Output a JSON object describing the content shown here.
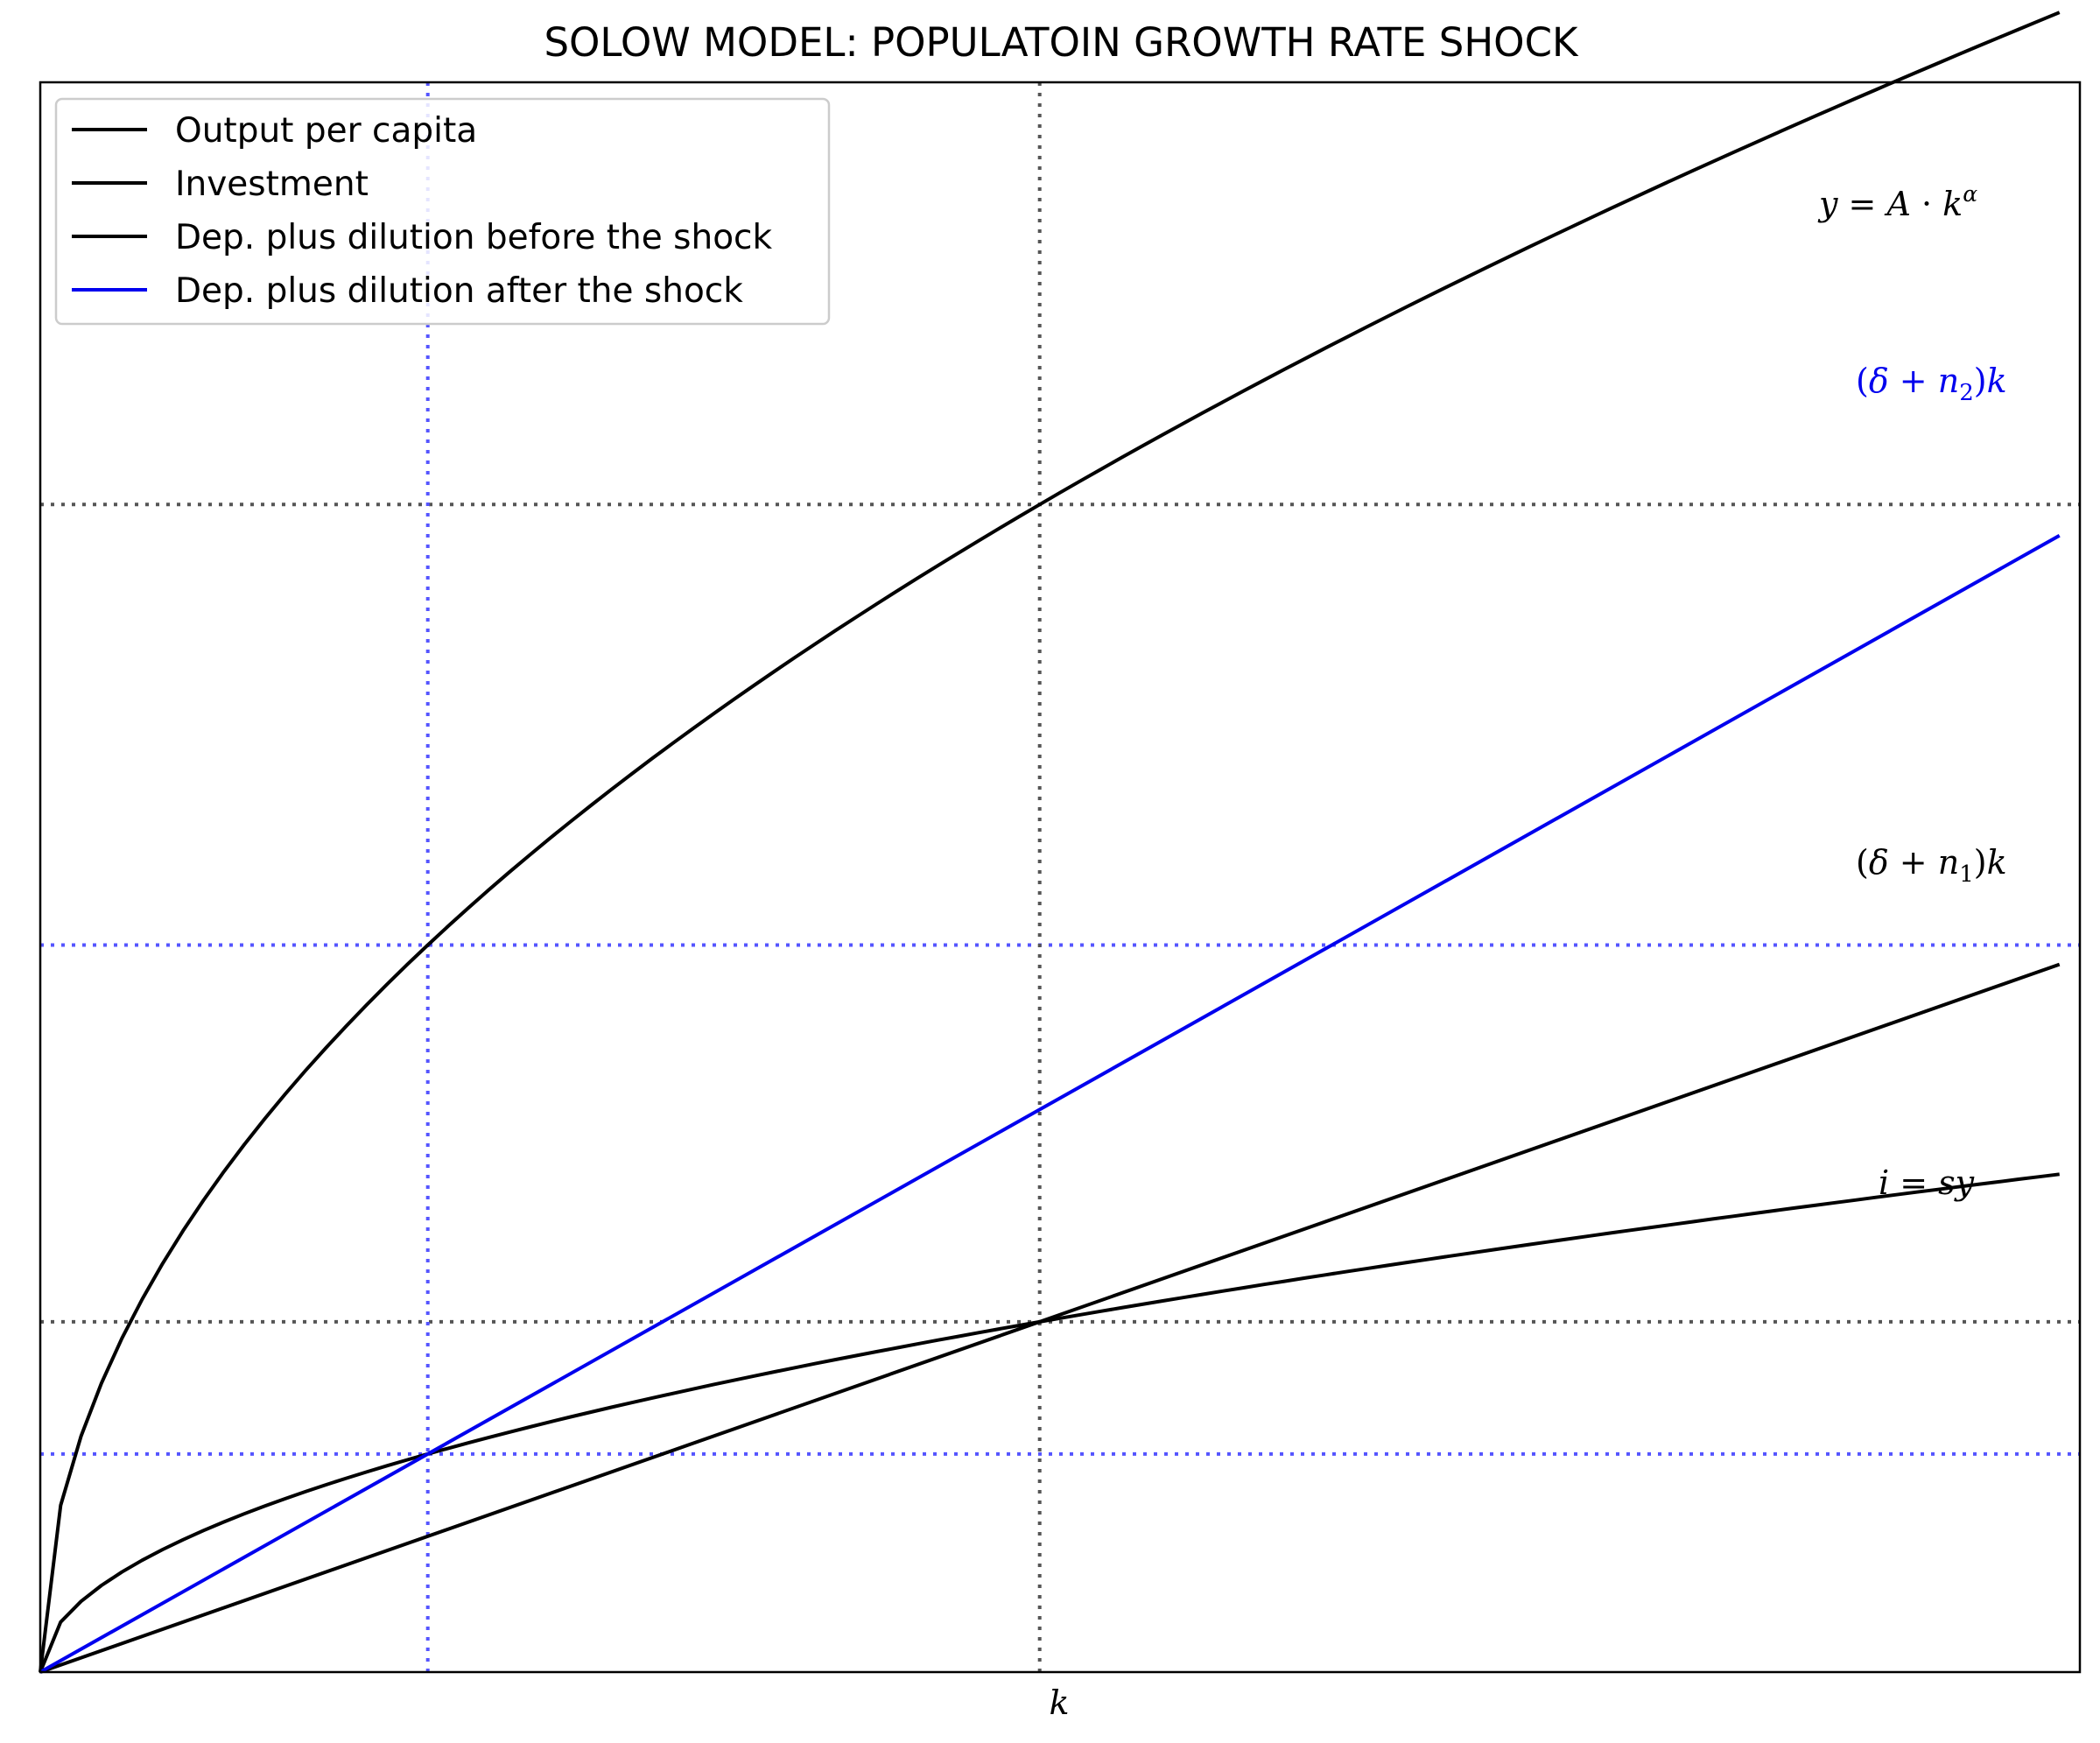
{
  "chart_data": {
    "type": "line",
    "title": "SOLOW MODEL: POPULATOIN GROWTH RATE SHOCK",
    "xlabel": "k",
    "ylabel": "",
    "xlim": [
      0,
      100
    ],
    "ylim": [
      0,
      15.25
    ],
    "x_ticks": [],
    "y_ticks": [],
    "grid": false,
    "legend": {
      "placement": "upper-left"
    },
    "parameters": {
      "A": 1.6,
      "alpha": 0.5,
      "s": 0.3,
      "k_star_1": 49,
      "k_star_2": 19
    },
    "series": [
      {
        "name": "Output per capita",
        "label": "y = A · k^α",
        "color": "#000000",
        "kind": "power",
        "coef": 1.6,
        "exponent": 0.5
      },
      {
        "name": "Investment",
        "label": "i = sy",
        "color": "#000000",
        "kind": "power",
        "coef": 0.48,
        "exponent": 0.5
      },
      {
        "name": "Dep. plus dilution before the shock",
        "label": "(δ + n₁)k",
        "color": "#000000",
        "kind": "linear",
        "slope": 0.068571
      },
      {
        "name": "Dep. plus dilution after the shock",
        "label": "(δ + n₂)k",
        "color": "#0000ee",
        "kind": "linear",
        "slope": 0.110127
      }
    ],
    "reference_lines": {
      "vertical": [
        {
          "x": 49,
          "color": "#555555"
        },
        {
          "x": 19,
          "color": "#5555ff"
        }
      ],
      "horizontal": [
        {
          "y": 11.2,
          "color": "#555555"
        },
        {
          "y": 3.36,
          "color": "#555555"
        },
        {
          "y": 6.974,
          "color": "#5555ff"
        },
        {
          "y": 2.092,
          "color": "#5555ff"
        }
      ]
    },
    "curve_labels": [
      {
        "text": "y = A · k^α",
        "series": 0,
        "color": "#000000"
      },
      {
        "text": "(δ + n₂)k",
        "series": 3,
        "color": "#0000ee"
      },
      {
        "text": "(δ + n₁)k",
        "series": 2,
        "color": "#000000"
      },
      {
        "text": "i = sy",
        "series": 1,
        "color": "#000000"
      }
    ]
  }
}
